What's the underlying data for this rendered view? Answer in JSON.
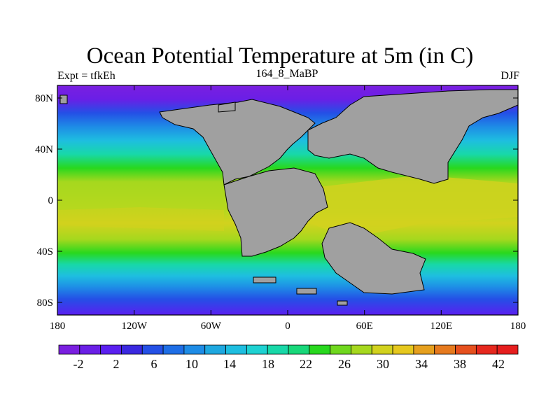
{
  "title": "Ocean Potential Temperature at 5m (in C)",
  "left_string": "Expt = tfkEh",
  "center_string": "164_8_MaBP",
  "right_string": "DJF",
  "x_ticks": [
    "180",
    "120W",
    "60W",
    "0",
    "60E",
    "120E",
    "180"
  ],
  "y_ticks": [
    "80N",
    "40N",
    "0",
    "40S",
    "80S"
  ],
  "colorbar": {
    "labels": [
      "-2",
      "2",
      "6",
      "10",
      "14",
      "18",
      "22",
      "26",
      "30",
      "34",
      "38",
      "42"
    ],
    "colors": [
      "#7a1fe0",
      "#6a1fe6",
      "#5a1ff0",
      "#3a28e0",
      "#2450e6",
      "#1e6ee6",
      "#1e8ce6",
      "#1ea8e0",
      "#1ebee0",
      "#1ed2d2",
      "#18d8a8",
      "#18d87a",
      "#28d81e",
      "#70d81e",
      "#a6d81e",
      "#d2d21e",
      "#e6c81e",
      "#e6a01e",
      "#e67a1e",
      "#e6501e",
      "#e6281e",
      "#e61e1e"
    ]
  },
  "colors": {
    "land": "#a0a0a0",
    "polar": "#7a1fe0",
    "cold": "#1e6ee6",
    "cool": "#1ebee0",
    "mild": "#28d81e",
    "warm": "#a6d81e",
    "hot": "#d2d21e"
  }
}
